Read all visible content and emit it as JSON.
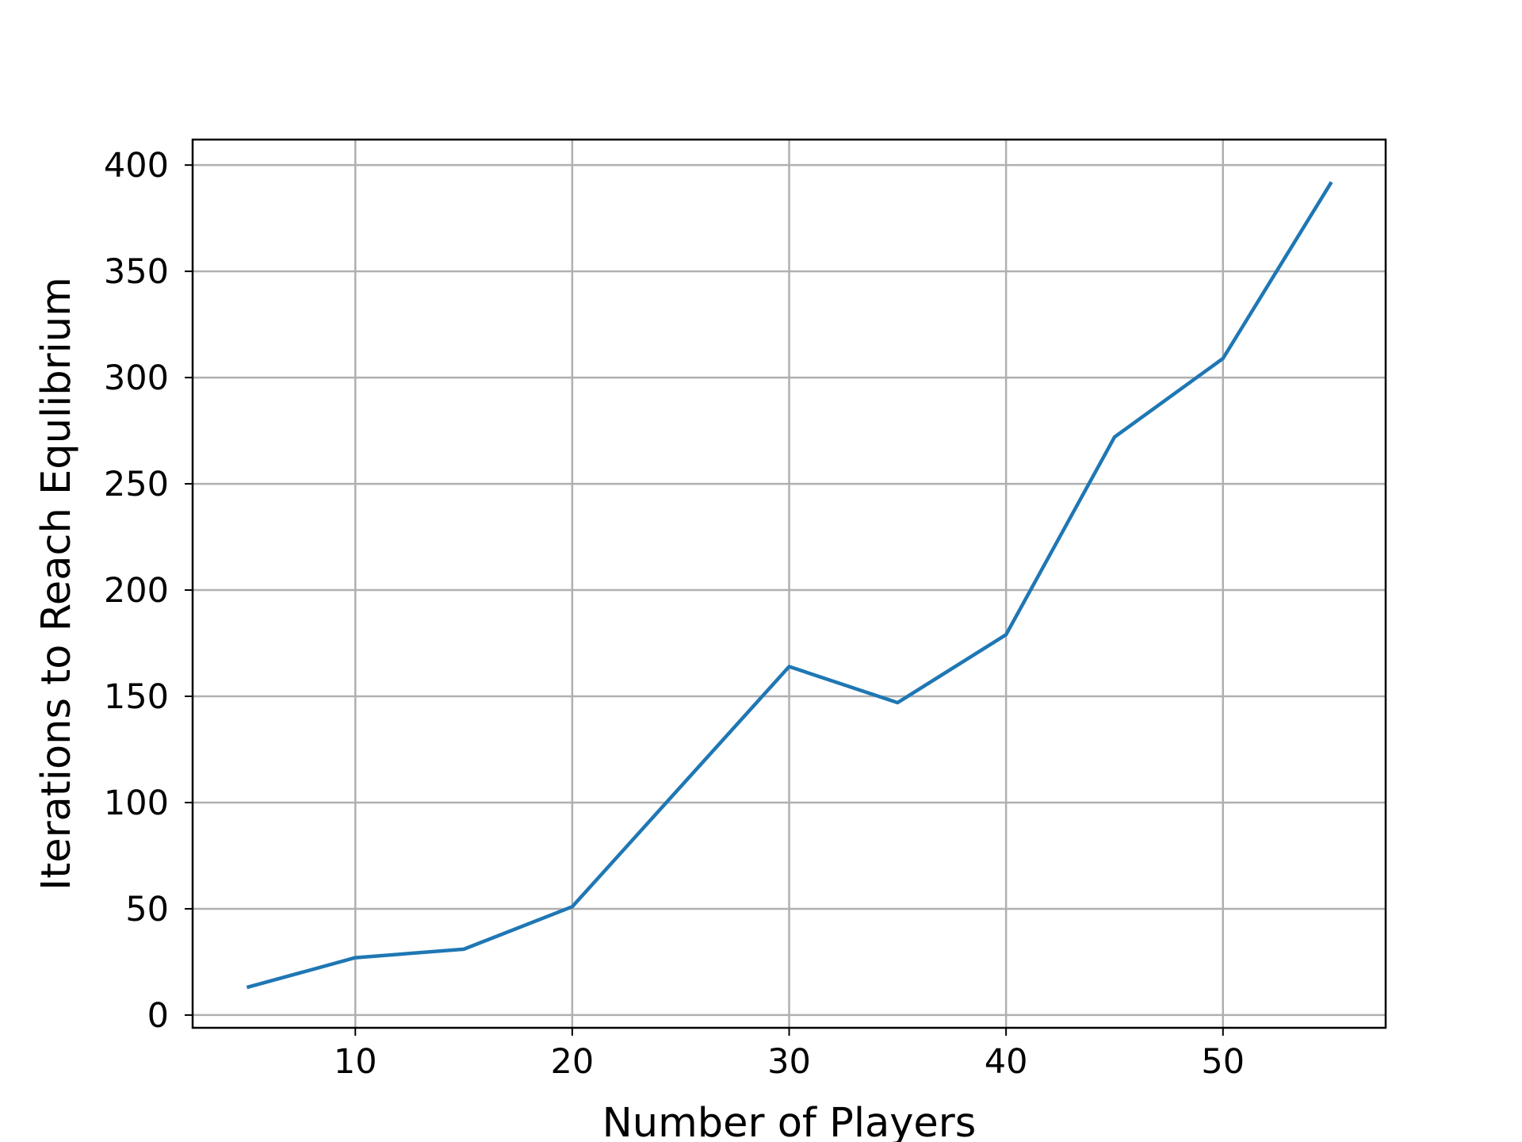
{
  "chart_data": {
    "type": "line",
    "title": "",
    "xlabel": "Number of Players",
    "ylabel": "Iterations to Reach Equlibrium",
    "x": [
      5,
      10,
      15,
      20,
      30,
      35,
      40,
      45,
      50,
      55
    ],
    "series": [
      {
        "values": [
          13,
          27,
          31,
          51,
          164,
          147,
          179,
          272,
          309,
          392
        ],
        "color": "#1f77b4"
      }
    ],
    "xlim": [
      2.5,
      57.5
    ],
    "ylim": [
      -6,
      412
    ],
    "xticks": [
      10,
      20,
      30,
      40,
      50
    ],
    "xtick_labels": [
      "10",
      "20",
      "30",
      "40",
      "50"
    ],
    "yticks": [
      0,
      50,
      100,
      150,
      200,
      250,
      300,
      350,
      400
    ],
    "ytick_labels": [
      "0",
      "50",
      "100",
      "150",
      "200",
      "250",
      "300",
      "350",
      "400"
    ],
    "grid": true,
    "legend": "none"
  }
}
